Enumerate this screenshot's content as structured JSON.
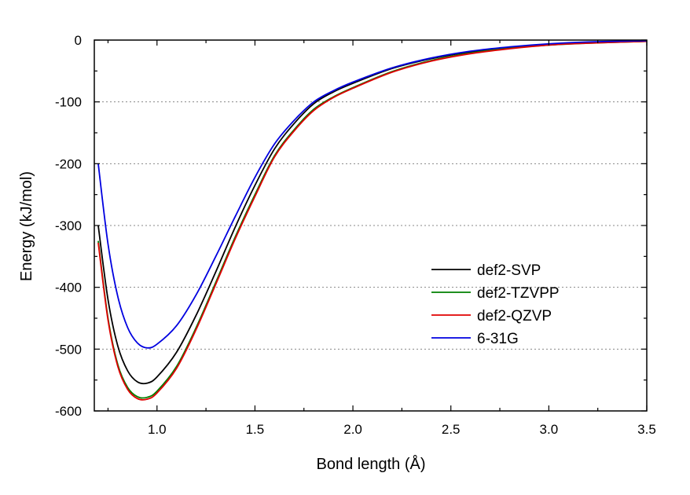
{
  "chart_data": {
    "type": "line",
    "title": "",
    "xlabel": "Bond length (Å)",
    "ylabel": "Energy (kJ/mol)",
    "xlim": [
      0.68,
      3.5
    ],
    "ylim": [
      -600,
      0
    ],
    "x_ticks": [
      1.0,
      1.5,
      2.0,
      2.5,
      3.0,
      3.5
    ],
    "x_tick_labels": [
      "1.0",
      "1.5",
      "2.0",
      "2.5",
      "3.0",
      "3.5"
    ],
    "y_ticks": [
      0,
      -100,
      -200,
      -300,
      -400,
      -500,
      -600
    ],
    "y_tick_labels": [
      "0",
      "-100",
      "-200",
      "-300",
      "-400",
      "-500",
      "-600"
    ],
    "grid": "horizontal dotted at -100, -200, -300, -400, -500",
    "legend_position": "right",
    "series": [
      {
        "name": "def2-SVP",
        "color": "#000000",
        "x": [
          0.7,
          0.75,
          0.8,
          0.85,
          0.9,
          0.95,
          1.0,
          1.1,
          1.2,
          1.3,
          1.4,
          1.5,
          1.6,
          1.7,
          1.8,
          1.9,
          2.0,
          2.2,
          2.4,
          2.6,
          2.8,
          3.0,
          3.2,
          3.5
        ],
        "y": [
          -300,
          -420,
          -495,
          -535,
          -553,
          -555,
          -545,
          -505,
          -445,
          -375,
          -302,
          -235,
          -176,
          -135,
          -103,
          -84,
          -70,
          -46,
          -30,
          -19,
          -12,
          -7,
          -4,
          -2
        ]
      },
      {
        "name": "def2-TZVPP",
        "color": "#008000",
        "x": [
          0.7,
          0.75,
          0.8,
          0.85,
          0.9,
          0.95,
          1.0,
          1.1,
          1.2,
          1.3,
          1.4,
          1.5,
          1.6,
          1.7,
          1.8,
          1.9,
          2.0,
          2.2,
          2.4,
          2.6,
          2.8,
          3.0,
          3.2,
          3.5
        ],
        "y": [
          -325,
          -450,
          -525,
          -562,
          -577,
          -578,
          -568,
          -528,
          -465,
          -392,
          -318,
          -250,
          -187,
          -145,
          -112,
          -92,
          -77,
          -51,
          -33,
          -21,
          -13,
          -8,
          -5,
          -2
        ]
      },
      {
        "name": "def2-QZVP",
        "color": "#e00000",
        "x": [
          0.7,
          0.75,
          0.8,
          0.85,
          0.9,
          0.95,
          1.0,
          1.1,
          1.2,
          1.3,
          1.4,
          1.5,
          1.6,
          1.7,
          1.8,
          1.9,
          2.0,
          2.2,
          2.4,
          2.6,
          2.8,
          3.0,
          3.2,
          3.5
        ],
        "y": [
          -328,
          -453,
          -528,
          -565,
          -580,
          -581,
          -571,
          -531,
          -468,
          -395,
          -321,
          -253,
          -189,
          -147,
          -114,
          -93,
          -78,
          -52,
          -34,
          -22,
          -14,
          -8,
          -5,
          -2
        ]
      },
      {
        "name": "6-31G",
        "color": "#0000e0",
        "x": [
          0.7,
          0.75,
          0.8,
          0.85,
          0.9,
          0.95,
          1.0,
          1.1,
          1.2,
          1.3,
          1.4,
          1.5,
          1.6,
          1.7,
          1.8,
          1.9,
          2.0,
          2.2,
          2.4,
          2.6,
          2.8,
          3.0,
          3.2,
          3.5
        ],
        "y": [
          -200,
          -330,
          -415,
          -465,
          -490,
          -498,
          -492,
          -462,
          -412,
          -350,
          -285,
          -222,
          -168,
          -130,
          -100,
          -82,
          -68,
          -45,
          -29,
          -18,
          -11,
          -6,
          -3,
          -1
        ]
      }
    ]
  }
}
